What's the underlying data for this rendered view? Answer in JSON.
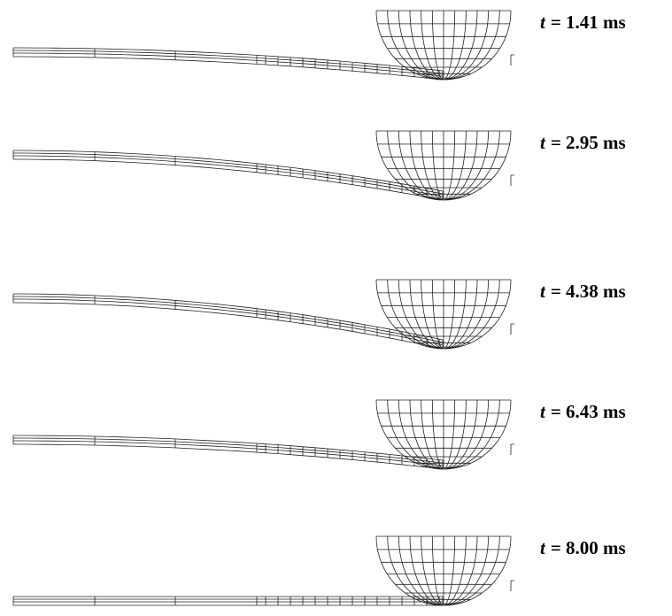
{
  "panels": [
    {
      "symbol": "t",
      "text": "= 1.41 ms"
    },
    {
      "symbol": "t",
      "text": "= 2.95 ms"
    },
    {
      "symbol": "t",
      "text": "= 4.38 ms"
    },
    {
      "symbol": "t",
      "text": "= 6.43 ms"
    },
    {
      "symbol": "t",
      "text": "= 8.00 ms"
    }
  ]
}
